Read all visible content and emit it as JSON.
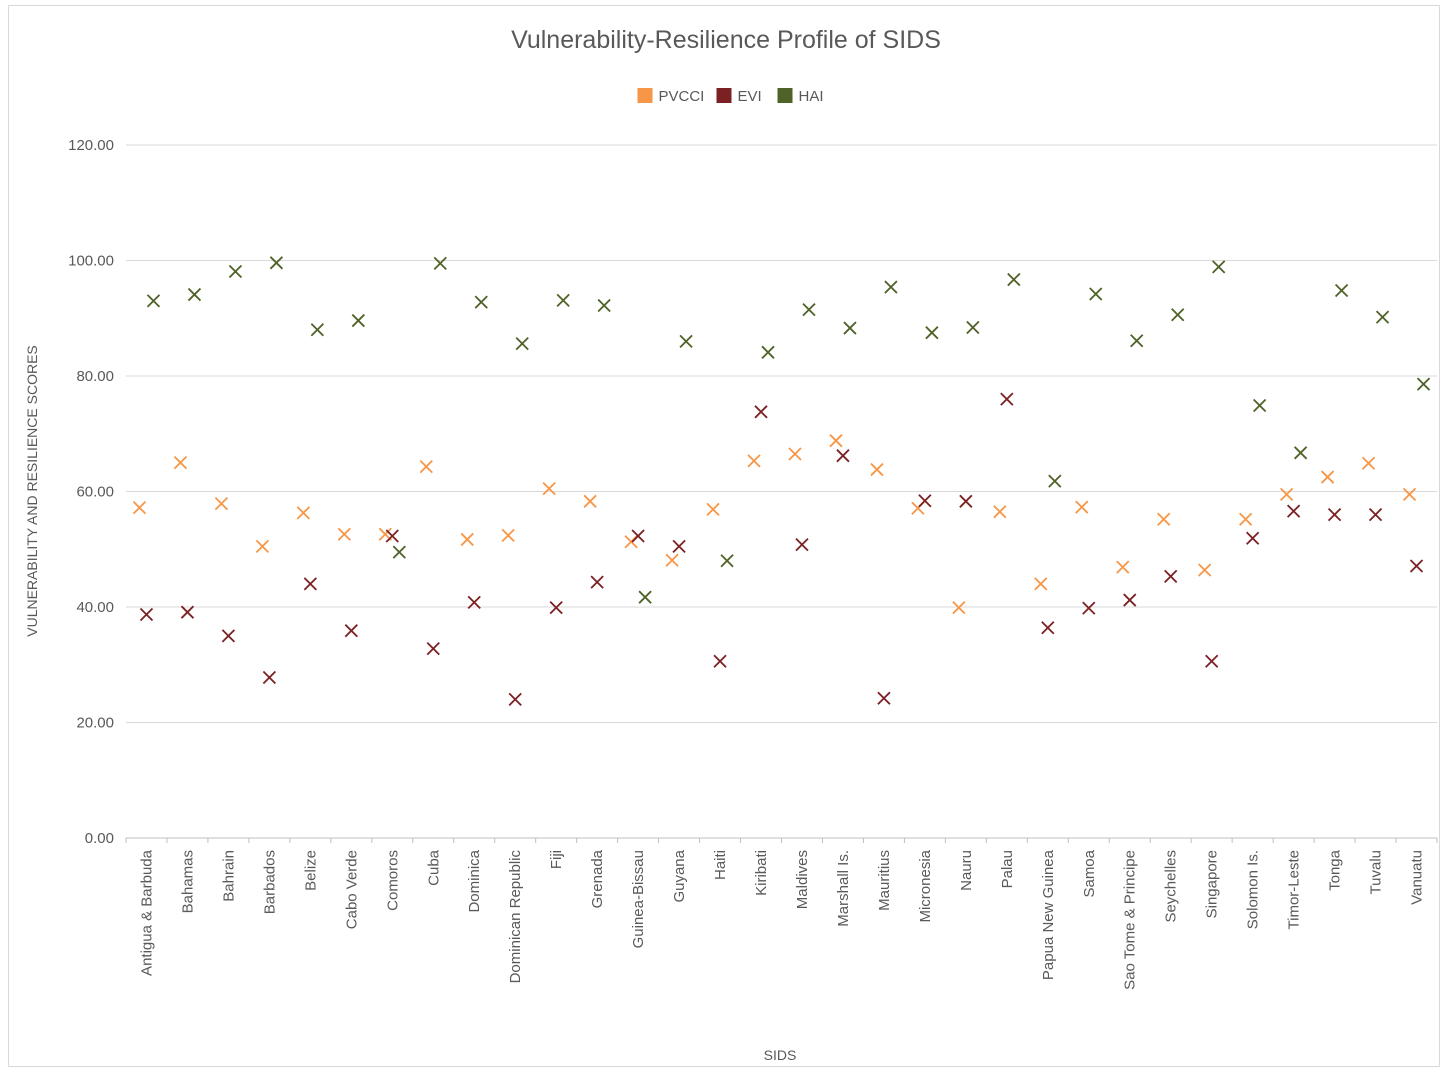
{
  "chart_data": {
    "type": "scatter",
    "title": "Vulnerability-Resilience Profile of SIDS",
    "xlabel": "SIDS",
    "ylabel": "VULNERABILITY AND RESILIENCE SCORES",
    "ylim": [
      0,
      120
    ],
    "yticks": [
      "0.00",
      "20.00",
      "40.00",
      "60.00",
      "80.00",
      "100.00",
      "120.00"
    ],
    "grid": true,
    "legend_position": "top",
    "categories": [
      "Antigua & Barbuda",
      "Bahamas",
      "Bahrain",
      "Barbados",
      "Belize",
      "Cabo Verde",
      "Comoros",
      "Cuba",
      "Dominica",
      "Dominican Republic",
      "Fiji",
      "Grenada",
      "Guinea-Bissau",
      "Guyana",
      "Haiti",
      "Kiribati",
      "Maldives",
      "Marshall Is.",
      "Mauritius",
      "Micronesia",
      "Nauru",
      "Palau",
      "Papua New Guinea",
      "Samoa",
      "Sao Tome & Principe",
      "Seychelles",
      "Singapore",
      "Solomon Is.",
      "Timor-Leste",
      "Tonga",
      "Tuvalu",
      "Vanuatu"
    ],
    "series": [
      {
        "name": "PVCCI",
        "color": "#f79646",
        "values": [
          57.2,
          65.0,
          57.9,
          50.5,
          56.3,
          52.6,
          52.6,
          64.3,
          51.7,
          52.4,
          60.5,
          58.3,
          51.3,
          48.1,
          56.9,
          65.3,
          66.5,
          68.8,
          63.8,
          57.1,
          39.9,
          56.5,
          44.0,
          57.3,
          46.9,
          55.2,
          46.4,
          55.2,
          59.5,
          62.5,
          64.9,
          59.5
        ]
      },
      {
        "name": "EVI",
        "color": "#7b2023",
        "values": [
          38.7,
          39.1,
          35.0,
          27.8,
          44.0,
          35.9,
          52.3,
          32.8,
          40.8,
          24.0,
          39.9,
          44.3,
          52.3,
          50.5,
          30.6,
          73.8,
          50.8,
          66.2,
          24.2,
          58.4,
          58.3,
          76.0,
          36.4,
          39.8,
          41.2,
          45.3,
          30.6,
          51.9,
          56.6,
          56.0,
          56.0,
          47.1
        ]
      },
      {
        "name": "HAI",
        "color": "#4f6228",
        "values": [
          93.0,
          94.1,
          98.1,
          99.6,
          88.0,
          89.6,
          49.5,
          99.5,
          92.8,
          85.6,
          93.1,
          92.2,
          41.7,
          86.0,
          48.0,
          84.1,
          91.5,
          88.3,
          95.4,
          87.5,
          88.4,
          96.7,
          61.8,
          94.2,
          86.1,
          90.6,
          98.9,
          74.9,
          66.7,
          94.8,
          90.2,
          78.6
        ]
      }
    ]
  }
}
